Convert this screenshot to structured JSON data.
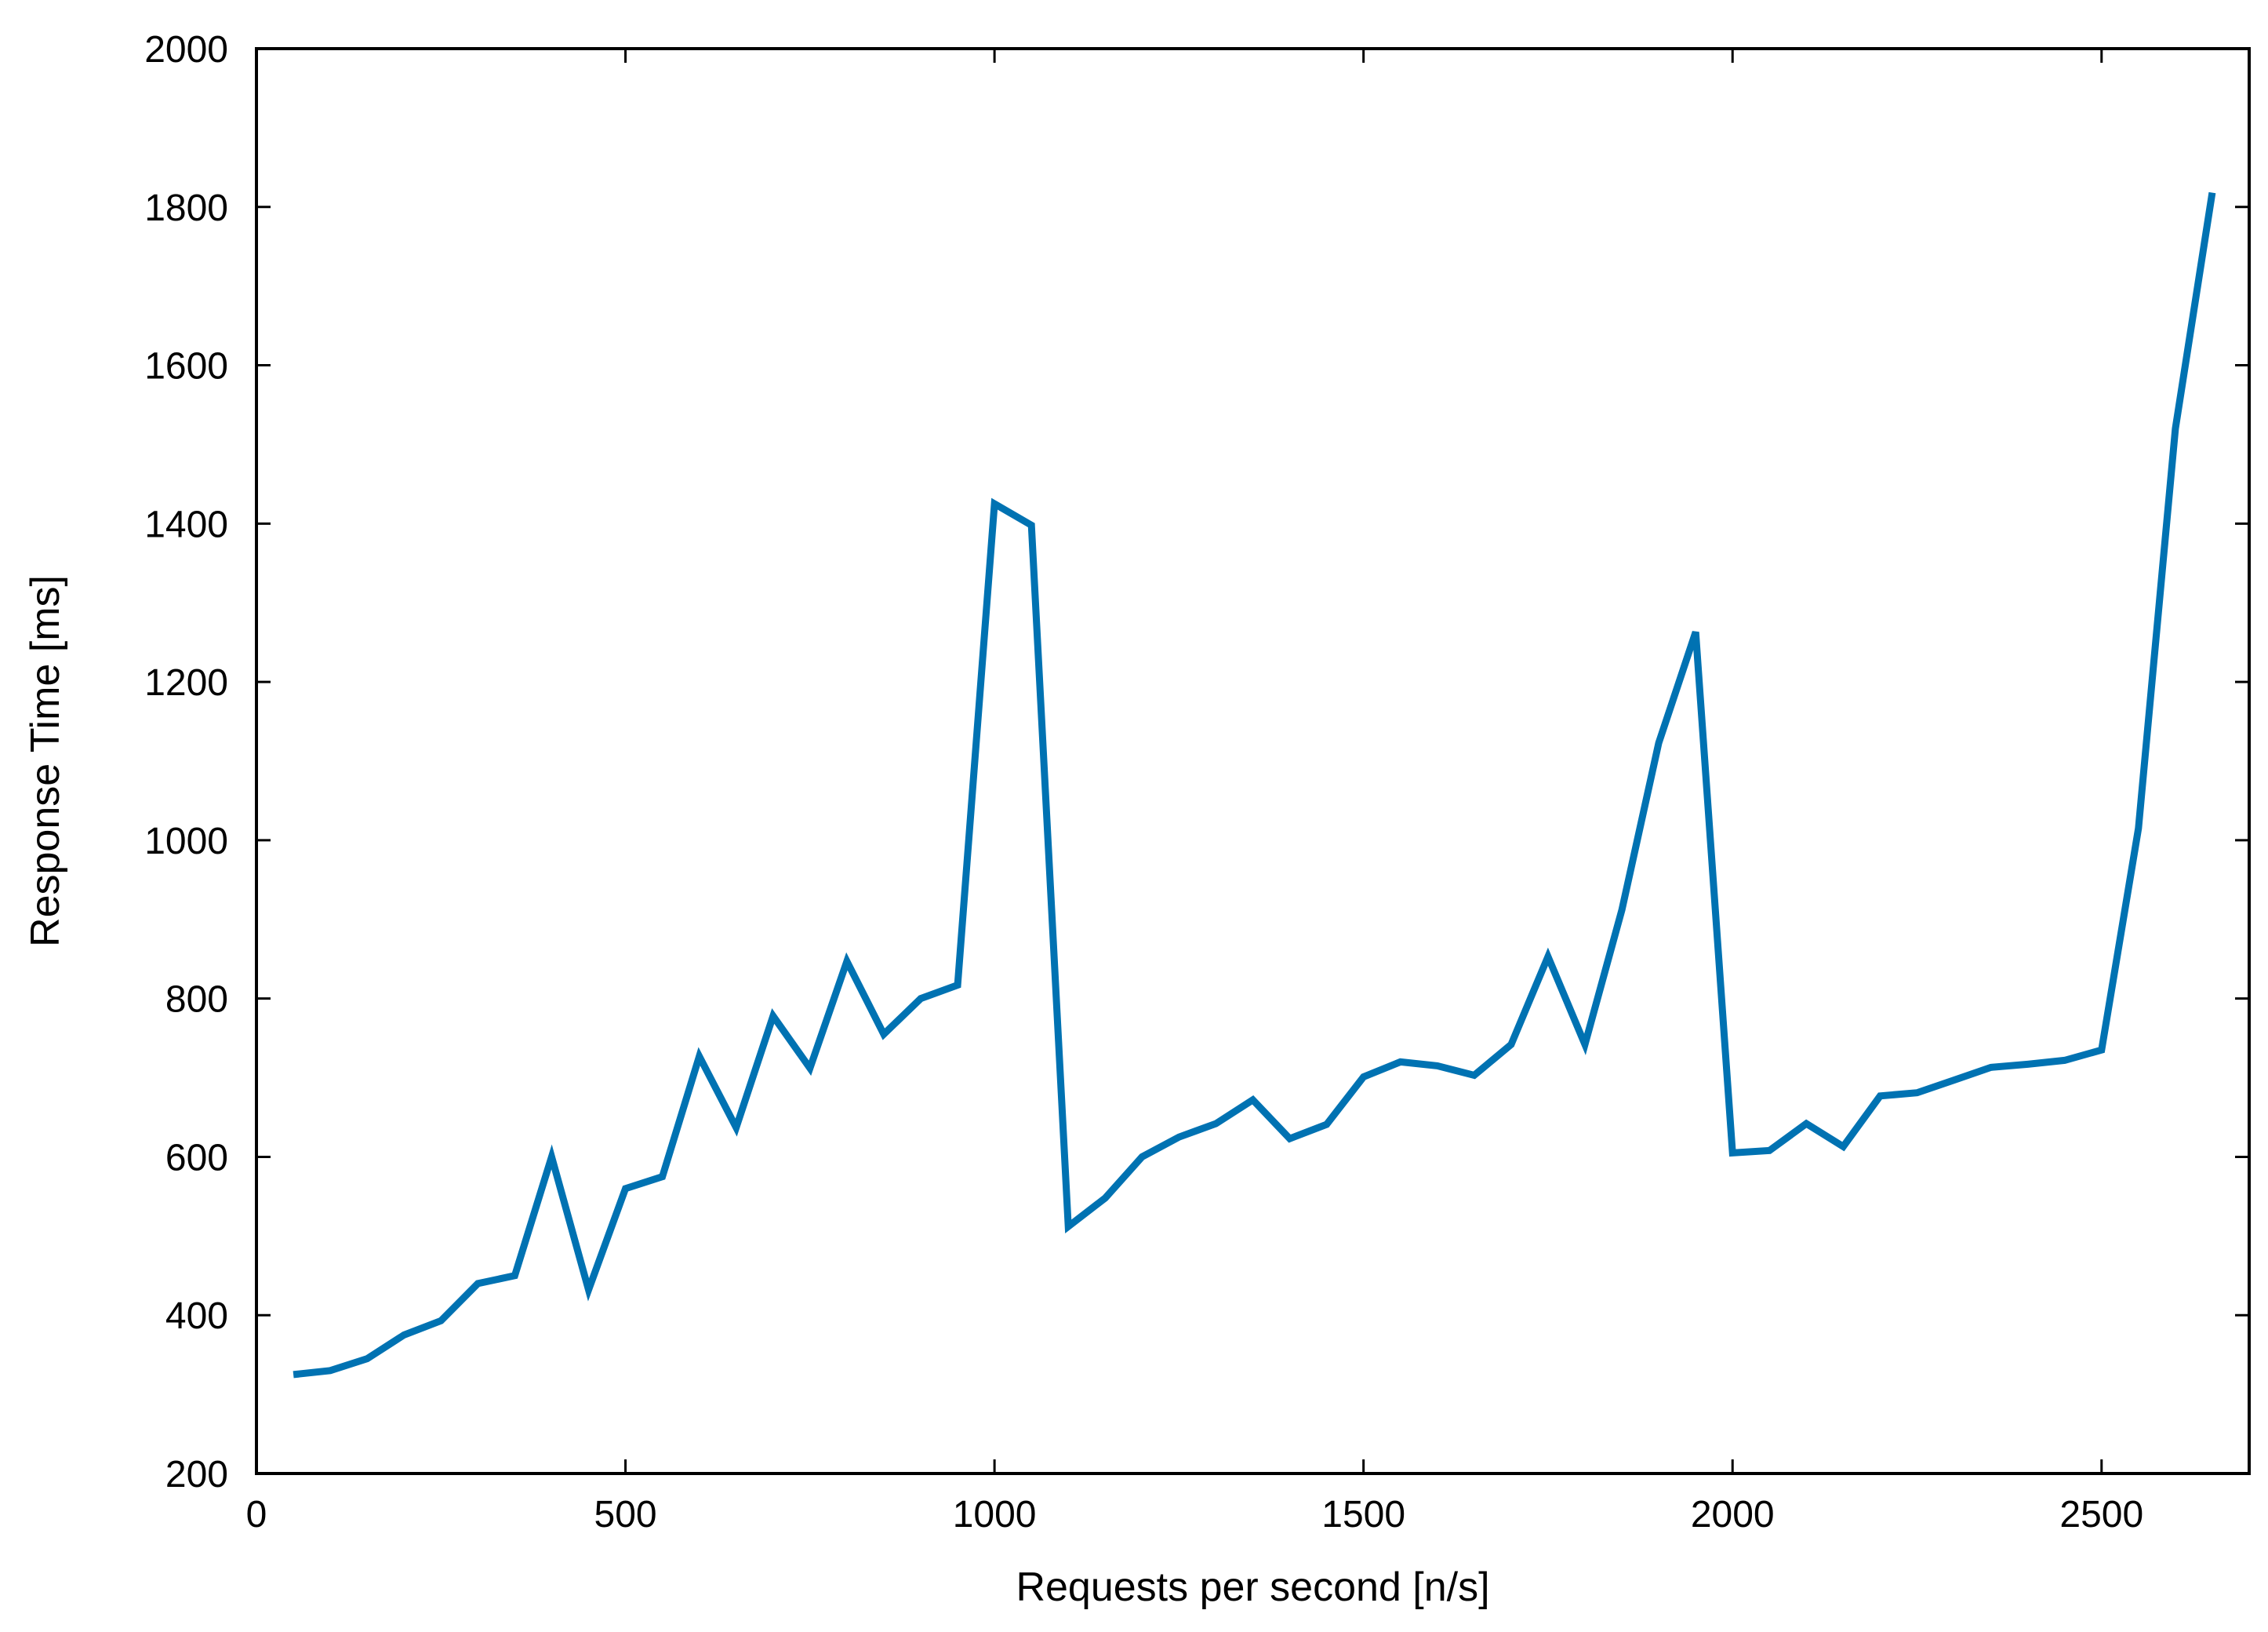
{
  "chart_data": {
    "type": "line",
    "xlabel": "Requests per second [n/s]",
    "ylabel": "Response Time [ms]",
    "xlim": [
      0,
      2700
    ],
    "ylim": [
      200,
      2000
    ],
    "xticks": [
      0,
      500,
      1000,
      1500,
      2000,
      2500
    ],
    "yticks": [
      200,
      400,
      600,
      800,
      1000,
      1200,
      1400,
      1600,
      1800,
      2000
    ],
    "grid": false,
    "legend": "none",
    "series": [
      {
        "color": "#0072b2",
        "x": [
          50,
          100,
          150,
          200,
          250,
          300,
          350,
          400,
          450,
          500,
          550,
          600,
          650,
          700,
          750,
          800,
          850,
          900,
          950,
          1000,
          1050,
          1100,
          1150,
          1200,
          1250,
          1300,
          1350,
          1400,
          1450,
          1500,
          1550,
          1600,
          1650,
          1700,
          1750,
          1800,
          1850,
          1900,
          1950,
          2000,
          2050,
          2100,
          2150,
          2200,
          2250,
          2300,
          2350,
          2400,
          2450,
          2500,
          2550,
          2600,
          2650
        ],
        "y": [
          325,
          330,
          345,
          375,
          393,
          440,
          450,
          600,
          432,
          560,
          575,
          727,
          637,
          778,
          712,
          847,
          755,
          800,
          817,
          1425,
          1398,
          512,
          548,
          600,
          625,
          642,
          672,
          623,
          641,
          701,
          720,
          715,
          703,
          742,
          853,
          742,
          912,
          1123,
          1263,
          605,
          608,
          642,
          613,
          677,
          681,
          697,
          713,
          717,
          722,
          735,
          1015,
          1520,
          1818
        ]
      }
    ]
  }
}
